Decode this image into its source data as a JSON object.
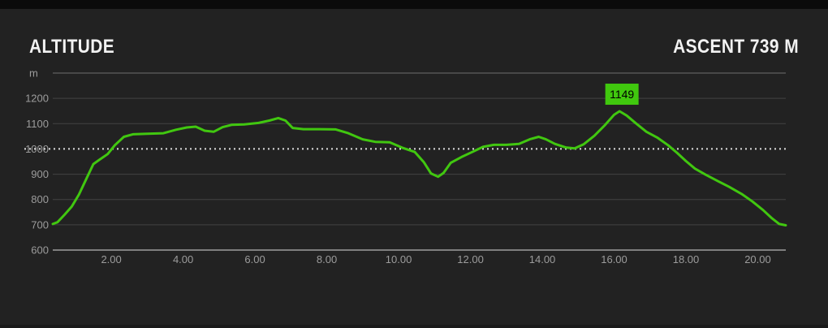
{
  "header": {
    "title": "ALTITUDE",
    "ascent": "ASCENT 739 M"
  },
  "colors": {
    "background": "#222222",
    "top_bar": "#0b0b0b",
    "line_green": "#41c710",
    "marker_fill": "#40c80e",
    "marker_text": "#000000",
    "grid_inner": "#424242",
    "grid_top": "#6f6f6f",
    "axis_bottom": "#9e9e9e",
    "dotted_line": "#dedede",
    "tick_text": "#9c9c9c",
    "title_text": "#f2f2f2"
  },
  "chart_data": {
    "type": "line",
    "title": "ALTITUDE",
    "subtitle": "ASCENT 739 M",
    "xlabel": "",
    "ylabel": "m",
    "unit_label": "m",
    "legend": "none",
    "grid": true,
    "xlim": [
      0.37,
      20.78
    ],
    "ylim": [
      600,
      1300
    ],
    "x_ticks": {
      "values": [
        2,
        4,
        6,
        8,
        10,
        12,
        14,
        16,
        18,
        20
      ],
      "labels": [
        "2.00",
        "4.00",
        "6.00",
        "8.00",
        "10.00",
        "12.00",
        "14.00",
        "16.00",
        "18.00",
        "20.00"
      ]
    },
    "y_ticks": {
      "values": [
        1200,
        1100,
        1000,
        900,
        800,
        700,
        600
      ],
      "labels": [
        "1200",
        "1100",
        "1000",
        "900",
        "800",
        "700",
        "600"
      ]
    },
    "dotted_reference_level": 1000,
    "peak_marker": {
      "x": 16.15,
      "value": 1149,
      "label": "1149"
    },
    "series": [
      {
        "name": "altitude",
        "points": [
          [
            0.37,
            703
          ],
          [
            0.5,
            710
          ],
          [
            0.7,
            740
          ],
          [
            0.9,
            772
          ],
          [
            1.1,
            820
          ],
          [
            1.3,
            880
          ],
          [
            1.5,
            940
          ],
          [
            1.65,
            955
          ],
          [
            1.9,
            980
          ],
          [
            2.1,
            1015
          ],
          [
            2.35,
            1048
          ],
          [
            2.6,
            1058
          ],
          [
            3.0,
            1060
          ],
          [
            3.45,
            1062
          ],
          [
            3.8,
            1076
          ],
          [
            4.1,
            1085
          ],
          [
            4.35,
            1088
          ],
          [
            4.6,
            1072
          ],
          [
            4.85,
            1068
          ],
          [
            5.1,
            1086
          ],
          [
            5.35,
            1095
          ],
          [
            5.7,
            1097
          ],
          [
            6.1,
            1103
          ],
          [
            6.4,
            1112
          ],
          [
            6.65,
            1122
          ],
          [
            6.85,
            1112
          ],
          [
            7.05,
            1083
          ],
          [
            7.35,
            1078
          ],
          [
            7.8,
            1078
          ],
          [
            8.25,
            1077
          ],
          [
            8.6,
            1062
          ],
          [
            9.0,
            1038
          ],
          [
            9.35,
            1028
          ],
          [
            9.75,
            1026
          ],
          [
            10.1,
            1005
          ],
          [
            10.45,
            988
          ],
          [
            10.7,
            948
          ],
          [
            10.9,
            903
          ],
          [
            11.1,
            890
          ],
          [
            11.25,
            905
          ],
          [
            11.45,
            945
          ],
          [
            11.75,
            968
          ],
          [
            12.05,
            988
          ],
          [
            12.35,
            1008
          ],
          [
            12.65,
            1016
          ],
          [
            13.0,
            1016
          ],
          [
            13.35,
            1020
          ],
          [
            13.65,
            1038
          ],
          [
            13.9,
            1048
          ],
          [
            14.1,
            1038
          ],
          [
            14.35,
            1020
          ],
          [
            14.65,
            1006
          ],
          [
            14.9,
            1002
          ],
          [
            15.15,
            1018
          ],
          [
            15.45,
            1052
          ],
          [
            15.75,
            1095
          ],
          [
            16.0,
            1135
          ],
          [
            16.15,
            1149
          ],
          [
            16.35,
            1132
          ],
          [
            16.6,
            1102
          ],
          [
            16.9,
            1068
          ],
          [
            17.2,
            1045
          ],
          [
            17.5,
            1015
          ],
          [
            17.75,
            985
          ],
          [
            18.0,
            952
          ],
          [
            18.25,
            922
          ],
          [
            18.55,
            898
          ],
          [
            18.9,
            872
          ],
          [
            19.2,
            850
          ],
          [
            19.55,
            822
          ],
          [
            19.85,
            792
          ],
          [
            20.15,
            758
          ],
          [
            20.4,
            725
          ],
          [
            20.6,
            703
          ],
          [
            20.78,
            698
          ]
        ]
      }
    ]
  }
}
